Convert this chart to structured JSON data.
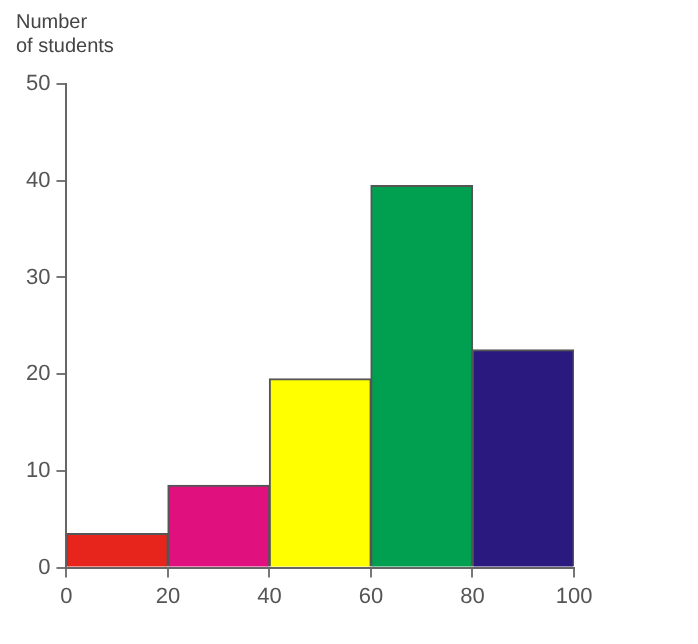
{
  "chart_data": {
    "type": "histogram",
    "ylabel": "Number\nof students",
    "bins": [
      0,
      20,
      40,
      60,
      80,
      100
    ],
    "values": [
      3.5,
      8.5,
      19.5,
      39.5,
      22.5
    ],
    "colors": [
      "#e8251c",
      "#e0107f",
      "#ffff00",
      "#00a050",
      "#2a1a80"
    ],
    "xlim": [
      0,
      100
    ],
    "xticks": [
      0,
      20,
      40,
      60,
      80,
      100
    ],
    "ylim": [
      0,
      50
    ],
    "yticks": [
      0,
      10,
      20,
      30,
      40,
      50
    ]
  }
}
